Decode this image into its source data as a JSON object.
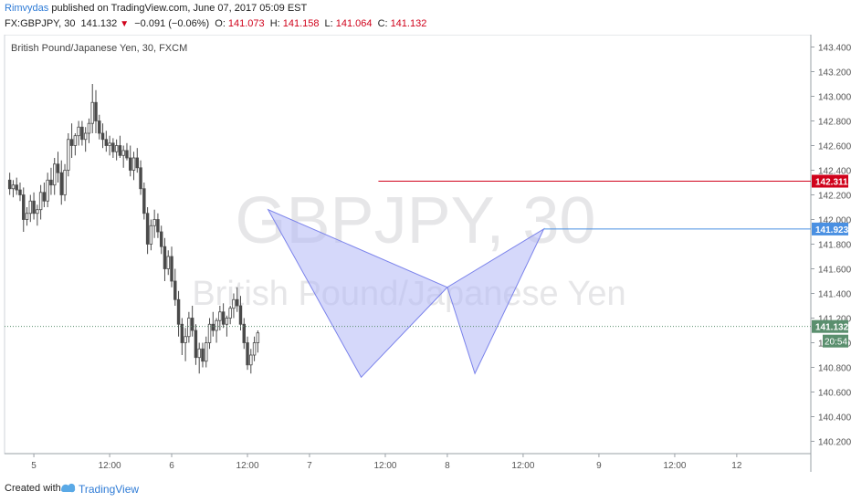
{
  "header": {
    "user": "Rimvydas",
    "published": "published on TradingView.com, June 07, 2017 05:09 EST",
    "symbol": "FX:GBPJPY, 30",
    "last": "141.132",
    "change_arrow": "▼",
    "change": "−0.091 (−0.06%)",
    "o_label": "O:",
    "o_val": "141.073",
    "h_label": "H:",
    "h_val": "141.158",
    "l_label": "L:",
    "l_val": "141.064",
    "c_label": "C:",
    "c_val": "141.132"
  },
  "footer": {
    "created_with": "Created with",
    "brand": "TradingView"
  },
  "colors": {
    "up": "#4a4a4a",
    "down": "#4a4a4a",
    "red_line": "#d0021b",
    "blue_line": "#4a90e2",
    "pattern_fill": "#b3b8f5",
    "pattern_stroke": "#7b83eb",
    "last_price": "#5a8f6e",
    "accent": "#2e7bd6"
  },
  "chart_data": {
    "type": "candlestick",
    "title": "British Pound/Japanese Yen, 30, FXCM",
    "watermark_symbol": "GBPJPY, 30",
    "watermark_name": "British Pound/Japanese Yen",
    "ylim": [
      140.1,
      143.5
    ],
    "y_ticks": [
      "140.200",
      "140.400",
      "140.600",
      "140.800",
      "141.000",
      "141.200",
      "141.400",
      "141.600",
      "141.800",
      "142.000",
      "142.200",
      "142.400",
      "142.600",
      "142.800",
      "143.000",
      "143.200",
      "143.400"
    ],
    "x_ticks": [
      "5",
      "12:00",
      "6",
      "12:00",
      "7",
      "12:00",
      "8",
      "12:00",
      "9",
      "12:00",
      "12"
    ],
    "x_tick_index": [
      8,
      30,
      48,
      70,
      88,
      110,
      128,
      150,
      172,
      194,
      212
    ],
    "bar_count": 234,
    "candles": [
      [
        142.32,
        142.38,
        142.2,
        142.25
      ],
      [
        142.25,
        142.32,
        142.18,
        142.28
      ],
      [
        142.28,
        142.34,
        142.2,
        142.24
      ],
      [
        142.24,
        142.3,
        142.15,
        142.2
      ],
      [
        142.2,
        142.26,
        141.9,
        142.0
      ],
      [
        142.0,
        142.1,
        141.95,
        142.05
      ],
      [
        142.05,
        142.2,
        141.98,
        142.15
      ],
      [
        142.15,
        142.22,
        142.0,
        142.05
      ],
      [
        142.05,
        142.12,
        141.95,
        142.08
      ],
      [
        142.08,
        142.28,
        142.0,
        142.22
      ],
      [
        142.22,
        142.3,
        142.1,
        142.15
      ],
      [
        142.15,
        142.38,
        142.1,
        142.32
      ],
      [
        142.32,
        142.42,
        142.2,
        142.28
      ],
      [
        142.28,
        142.5,
        142.2,
        142.45
      ],
      [
        142.45,
        142.55,
        142.3,
        142.38
      ],
      [
        142.38,
        142.48,
        142.12,
        142.2
      ],
      [
        142.2,
        142.45,
        142.15,
        142.4
      ],
      [
        142.4,
        142.7,
        142.35,
        142.65
      ],
      [
        142.65,
        142.78,
        142.5,
        142.6
      ],
      [
        142.6,
        142.7,
        142.52,
        142.68
      ],
      [
        142.68,
        142.8,
        142.6,
        142.75
      ],
      [
        142.75,
        142.8,
        142.6,
        142.65
      ],
      [
        142.65,
        142.75,
        142.55,
        142.7
      ],
      [
        142.7,
        142.82,
        142.62,
        142.78
      ],
      [
        142.78,
        143.1,
        142.7,
        142.95
      ],
      [
        142.95,
        143.05,
        142.7,
        142.8
      ],
      [
        142.8,
        142.85,
        142.65,
        142.7
      ],
      [
        142.7,
        142.78,
        142.58,
        142.65
      ],
      [
        142.65,
        142.72,
        142.55,
        142.6
      ],
      [
        142.6,
        142.68,
        142.52,
        142.62
      ],
      [
        142.62,
        142.66,
        142.5,
        142.55
      ],
      [
        142.55,
        142.65,
        142.48,
        142.6
      ],
      [
        142.6,
        142.68,
        142.5,
        142.52
      ],
      [
        142.52,
        142.6,
        142.42,
        142.56
      ],
      [
        142.56,
        142.62,
        142.48,
        142.5
      ],
      [
        142.5,
        142.6,
        142.35,
        142.4
      ],
      [
        142.4,
        142.55,
        142.32,
        142.5
      ],
      [
        142.5,
        142.58,
        142.38,
        142.42
      ],
      [
        142.42,
        142.48,
        142.2,
        142.25
      ],
      [
        142.25,
        142.3,
        142.0,
        142.05
      ],
      [
        142.05,
        142.1,
        141.72,
        141.8
      ],
      [
        141.8,
        142.0,
        141.75,
        141.95
      ],
      [
        141.95,
        142.08,
        141.85,
        142.0
      ],
      [
        142.0,
        142.05,
        141.85,
        141.9
      ],
      [
        141.9,
        141.95,
        141.72,
        141.78
      ],
      [
        141.78,
        141.85,
        141.5,
        141.6
      ],
      [
        141.6,
        141.75,
        141.55,
        141.7
      ],
      [
        141.7,
        141.78,
        141.45,
        141.5
      ],
      [
        141.5,
        141.6,
        141.3,
        141.35
      ],
      [
        141.35,
        141.42,
        141.05,
        141.15
      ],
      [
        141.15,
        141.2,
        140.9,
        141.0
      ],
      [
        141.0,
        141.12,
        140.85,
        141.05
      ],
      [
        141.05,
        141.25,
        141.0,
        141.2
      ],
      [
        141.2,
        141.3,
        141.05,
        141.1
      ],
      [
        141.1,
        141.15,
        140.82,
        140.88
      ],
      [
        140.88,
        141.0,
        140.75,
        140.95
      ],
      [
        140.95,
        141.0,
        140.8,
        140.85
      ],
      [
        140.85,
        141.05,
        140.8,
        141.0
      ],
      [
        141.0,
        141.2,
        140.95,
        141.15
      ],
      [
        141.15,
        141.25,
        141.05,
        141.1
      ],
      [
        141.1,
        141.2,
        141.0,
        141.18
      ],
      [
        141.18,
        141.3,
        141.1,
        141.25
      ],
      [
        141.25,
        141.32,
        141.12,
        141.15
      ],
      [
        141.15,
        141.22,
        141.05,
        141.2
      ],
      [
        141.2,
        141.3,
        141.15,
        141.28
      ],
      [
        141.28,
        141.4,
        141.2,
        141.35
      ],
      [
        141.35,
        141.45,
        141.25,
        141.3
      ],
      [
        141.3,
        141.38,
        141.1,
        141.15
      ],
      [
        141.15,
        141.2,
        140.95,
        141.0
      ],
      [
        141.0,
        141.05,
        140.78,
        140.82
      ],
      [
        140.82,
        140.95,
        140.75,
        140.9
      ],
      [
        140.9,
        141.05,
        140.85,
        141.0
      ],
      [
        141.0,
        141.1,
        140.92,
        141.08
      ]
    ],
    "horizontal_lines": [
      {
        "price": 142.311,
        "label": "142.311",
        "color": "#d0021b",
        "from_index": 108
      },
      {
        "price": 141.923,
        "label": "141.923",
        "color": "#4a90e2",
        "from_index": 156
      }
    ],
    "last_price": {
      "price": 141.132,
      "label": "141.132",
      "countdown": "20:54"
    },
    "pattern": {
      "name": "bat",
      "points": [
        {
          "i": 76,
          "price": 142.08
        },
        {
          "i": 103,
          "price": 140.72
        },
        {
          "i": 128,
          "price": 141.45
        },
        {
          "i": 136,
          "price": 140.75
        },
        {
          "i": 156,
          "price": 141.923
        }
      ]
    }
  }
}
